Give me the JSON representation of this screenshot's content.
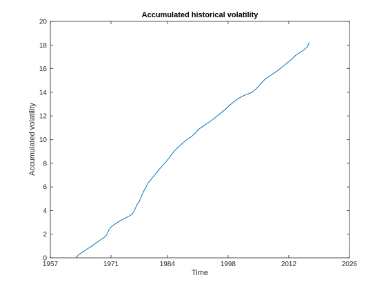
{
  "chart_data": {
    "type": "line",
    "title": "Accumulated historical volatility",
    "xlabel": "Time",
    "ylabel": "Accumulated volatility",
    "xlim": [
      1957,
      2026
    ],
    "ylim": [
      0,
      20
    ],
    "x_ticks": [
      1957,
      1971,
      1984,
      1998,
      2012,
      2026
    ],
    "x_tick_labels": [
      "1957",
      "1971",
      "1984",
      "1998",
      "2012",
      "2026"
    ],
    "y_ticks": [
      0,
      2,
      4,
      6,
      8,
      10,
      12,
      14,
      16,
      18,
      20
    ],
    "y_tick_labels": [
      "0",
      "2",
      "4",
      "6",
      "8",
      "10",
      "12",
      "14",
      "16",
      "18",
      "20"
    ],
    "grid": false,
    "legend": "none",
    "line_color": "#0072BD",
    "series": [
      {
        "x": [
          1962.9,
          1963.5,
          1964.5,
          1965.5,
          1966.5,
          1967.5,
          1968.5,
          1969.5,
          1970.0,
          1970.5,
          1971.0,
          1971.5,
          1972.5,
          1973.5,
          1974.5,
          1975.5,
          1976.0,
          1976.5,
          1977.0,
          1977.5,
          1978.0,
          1978.5,
          1979.0,
          1979.5,
          1980.5,
          1981.5,
          1982.5,
          1983.5,
          1984.5,
          1985.5,
          1986.5,
          1987.5,
          1988.5,
          1989.5,
          1990.5,
          1991.0,
          1991.5,
          1992.5,
          1993.5,
          1994.5,
          1995.5,
          1996.5,
          1997.5,
          1998.5,
          1999.5,
          2000.5,
          2001.5,
          2002.5,
          2003.5,
          2004.5,
          2005.5,
          2006.5,
          2007.5,
          2008.5,
          2009.5,
          2010.5,
          2011.5,
          2012.5,
          2013.5,
          2014.5,
          2015.5,
          2016.3,
          2016.7
        ],
        "y": [
          0.0,
          0.25,
          0.5,
          0.75,
          0.98,
          1.25,
          1.5,
          1.75,
          1.95,
          2.35,
          2.6,
          2.75,
          3.0,
          3.2,
          3.4,
          3.6,
          3.75,
          4.1,
          4.5,
          4.75,
          5.2,
          5.6,
          5.95,
          6.3,
          6.75,
          7.2,
          7.65,
          8.05,
          8.5,
          9.0,
          9.35,
          9.7,
          10.0,
          10.25,
          10.55,
          10.8,
          10.95,
          11.2,
          11.45,
          11.7,
          12.0,
          12.3,
          12.6,
          12.95,
          13.25,
          13.5,
          13.7,
          13.85,
          14.0,
          14.3,
          14.7,
          15.1,
          15.35,
          15.6,
          15.85,
          16.15,
          16.45,
          16.75,
          17.1,
          17.35,
          17.6,
          17.85,
          18.2
        ]
      }
    ]
  }
}
